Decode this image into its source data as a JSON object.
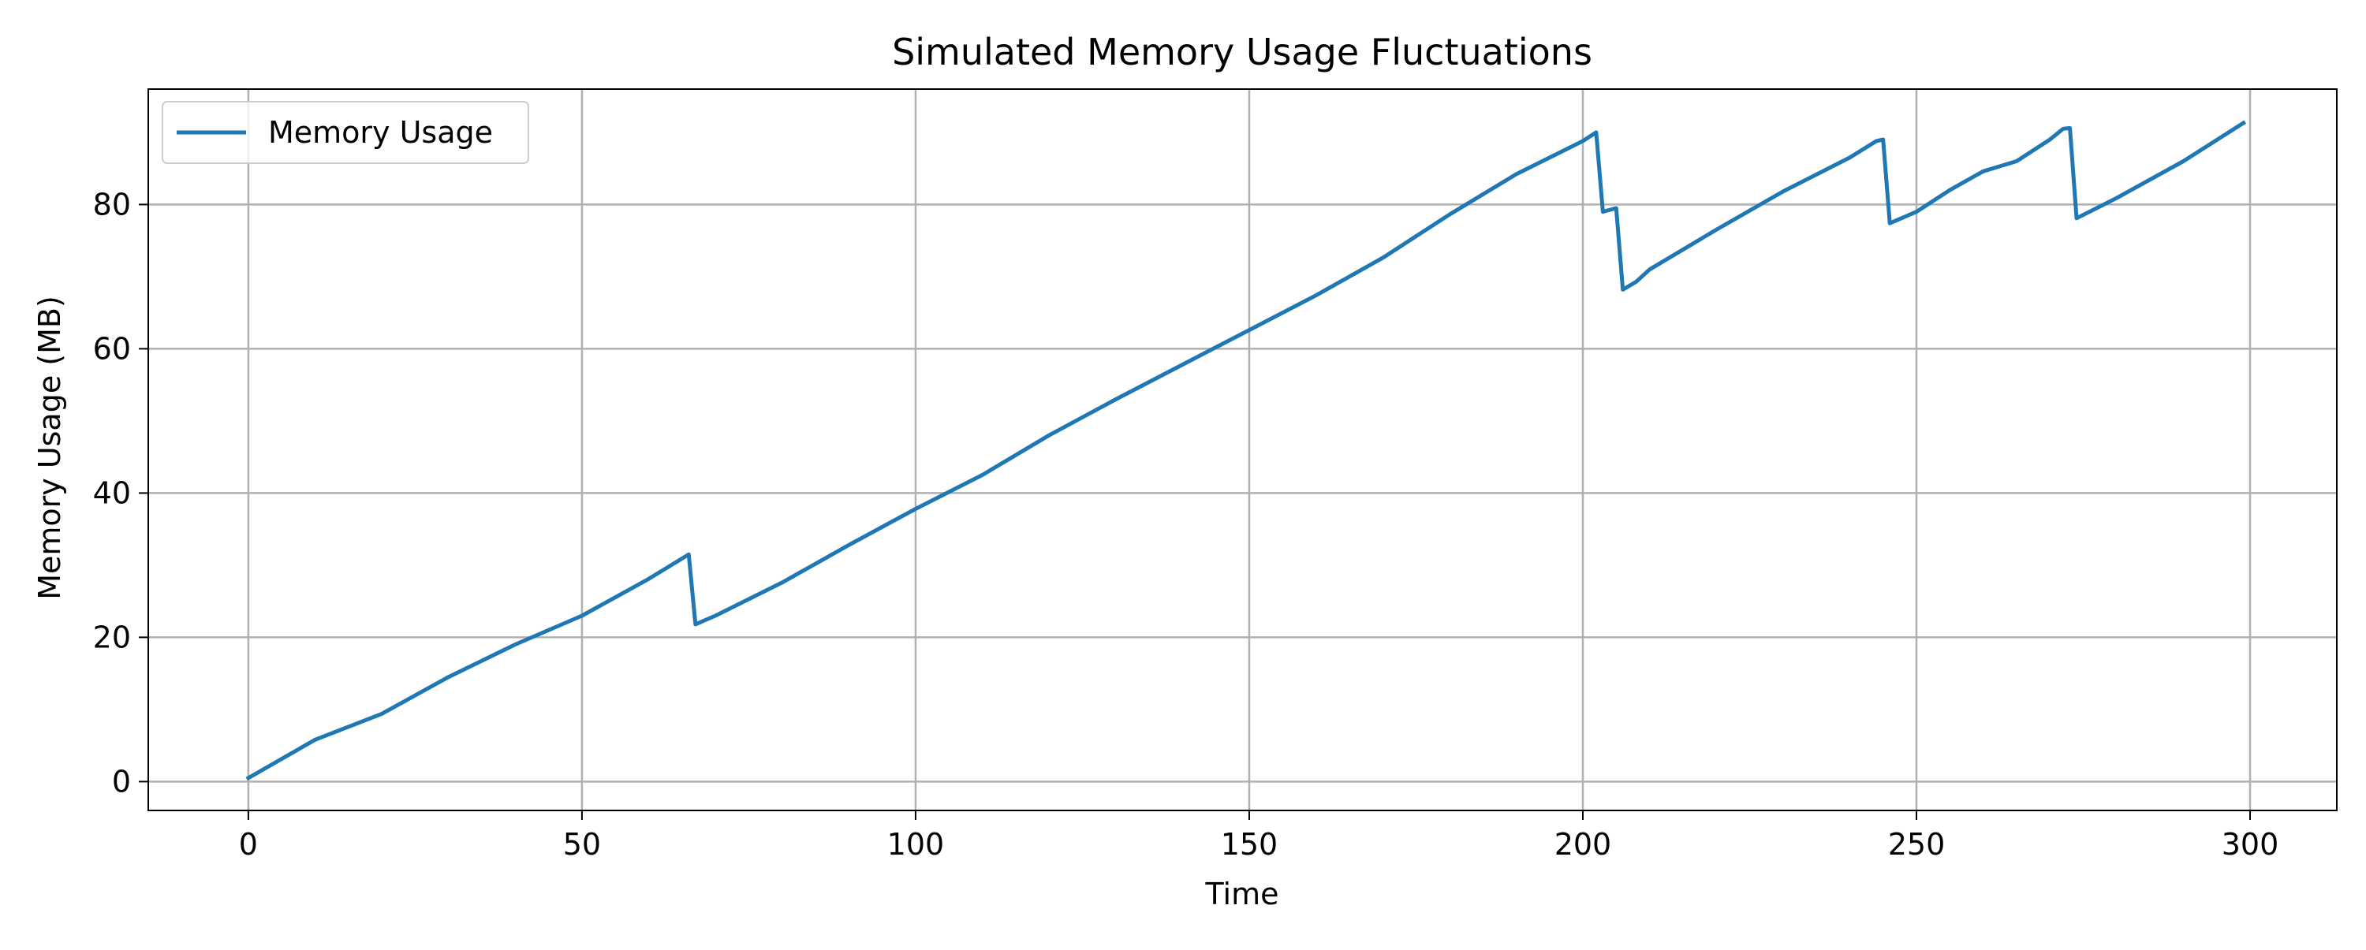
{
  "chart_data": {
    "type": "line",
    "title": "Simulated Memory Usage Fluctuations",
    "xlabel": "Time",
    "ylabel": "Memory Usage (MB)",
    "xlim": [
      -15,
      313
    ],
    "ylim": [
      -4,
      96
    ],
    "xticks": [
      0,
      50,
      100,
      150,
      200,
      250,
      300
    ],
    "yticks": [
      0,
      20,
      40,
      60,
      80
    ],
    "grid": true,
    "legend_position": "top-left",
    "series": [
      {
        "name": "Memory Usage",
        "color": "#1f77b4",
        "points": [
          [
            0,
            0.5
          ],
          [
            10,
            5.8
          ],
          [
            20,
            9.4
          ],
          [
            30,
            14.5
          ],
          [
            40,
            19.0
          ],
          [
            50,
            23.0
          ],
          [
            60,
            28.1
          ],
          [
            66,
            31.5
          ],
          [
            67,
            21.8
          ],
          [
            70,
            23.0
          ],
          [
            80,
            27.6
          ],
          [
            90,
            32.8
          ],
          [
            100,
            37.8
          ],
          [
            110,
            42.5
          ],
          [
            120,
            48.0
          ],
          [
            130,
            53.0
          ],
          [
            140,
            57.8
          ],
          [
            150,
            62.6
          ],
          [
            160,
            67.4
          ],
          [
            170,
            72.6
          ],
          [
            180,
            78.6
          ],
          [
            190,
            84.2
          ],
          [
            200,
            88.8
          ],
          [
            202,
            90.0
          ],
          [
            203,
            79.0
          ],
          [
            205,
            79.5
          ],
          [
            206,
            68.2
          ],
          [
            208,
            69.3
          ],
          [
            210,
            71.0
          ],
          [
            220,
            76.5
          ],
          [
            230,
            81.8
          ],
          [
            240,
            86.5
          ],
          [
            244,
            88.8
          ],
          [
            245,
            89.0
          ],
          [
            246,
            77.4
          ],
          [
            250,
            79.0
          ],
          [
            255,
            82.0
          ],
          [
            260,
            84.6
          ],
          [
            265,
            86.0
          ],
          [
            270,
            89.0
          ],
          [
            272,
            90.5
          ],
          [
            273,
            90.6
          ],
          [
            274,
            78.1
          ],
          [
            280,
            80.9
          ],
          [
            290,
            86.0
          ],
          [
            299,
            91.3
          ]
        ]
      }
    ]
  }
}
